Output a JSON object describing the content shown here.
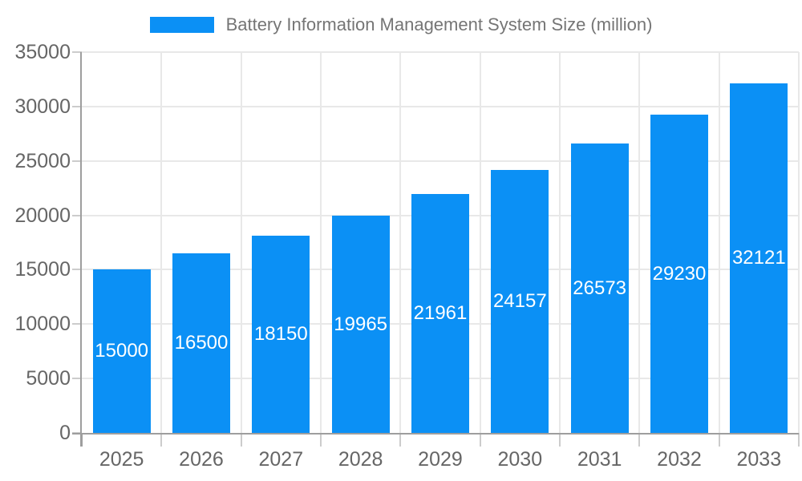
{
  "legend": {
    "label": "Battery Information Management System Size (million)"
  },
  "colors": {
    "bar": "#0b90f5",
    "bar_label_text": "#ffffff",
    "legend_text": "#757575",
    "axis_text": "#666666",
    "grid_line": "#e8e8e8",
    "axis_line": "#9e9e9e",
    "tick_line": "#cccccc"
  },
  "chart_data": {
    "type": "bar",
    "title": "Battery Information Management System Size (million)",
    "categories": [
      "2025",
      "2026",
      "2027",
      "2028",
      "2029",
      "2030",
      "2031",
      "2032",
      "2033"
    ],
    "values": [
      15000,
      16500,
      18150,
      19965,
      21961,
      24157,
      26573,
      29230,
      32121
    ],
    "bar_labels": [
      "15000",
      "16500",
      "18150",
      "19965",
      "21961",
      "24157",
      "26573",
      "29230",
      "32121"
    ],
    "xlabel": "",
    "ylabel": "",
    "ylim": [
      0,
      35000
    ],
    "ytick_step": 5000,
    "ytick_labels": [
      "0",
      "5000",
      "10000",
      "15000",
      "20000",
      "25000",
      "30000",
      "35000"
    ],
    "grid": true,
    "legend_position": "top",
    "value_labels": "inside-center-white"
  }
}
